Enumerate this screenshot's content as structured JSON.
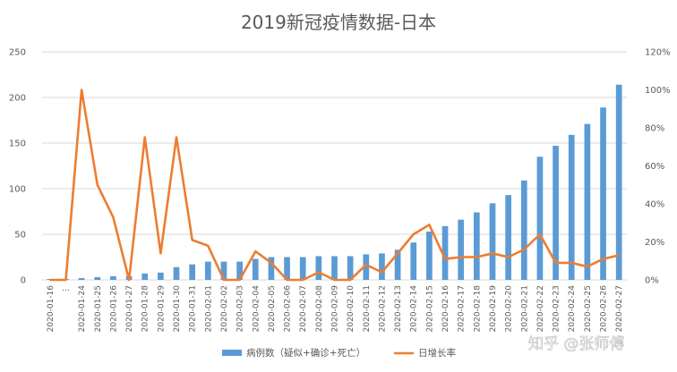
{
  "chart_data": {
    "type": "bar",
    "title": "2019新冠疫情数据-日本",
    "categories": [
      "2020-01-16",
      "…",
      "2020-01-24",
      "2020-01-25",
      "2020-01-26",
      "2020-01-27",
      "2020-01-28",
      "2020-01-29",
      "2020-01-30",
      "2020-01-31",
      "2020-02-01",
      "2020-02-02",
      "2020-02-03",
      "2020-02-04",
      "2020-02-05",
      "2020-02-06",
      "2020-02-07",
      "2020-02-08",
      "2020-02-09",
      "2020-02-10",
      "2020-02-11",
      "2020-02-12",
      "2020-02-13",
      "2020-02-14",
      "2020-02-15",
      "2020-02-16",
      "2020-02-17",
      "2020-02-18",
      "2020-02-19",
      "2020-02-20",
      "2020-02-21",
      "2020-02-22",
      "2020-02-23",
      "2020-02-24",
      "2020-02-25",
      "2020-02-26",
      "2020-02-27"
    ],
    "series": [
      {
        "name": "病例数（疑似+确诊+死亡）",
        "type": "bar",
        "axis": "left",
        "color": "#5B9BD5",
        "values": [
          1,
          1,
          2,
          3,
          4,
          4,
          7,
          8,
          14,
          17,
          20,
          20,
          20,
          23,
          25,
          25,
          25,
          26,
          26,
          26,
          28,
          29,
          33,
          41,
          53,
          59,
          66,
          74,
          84,
          93,
          109,
          135,
          147,
          159,
          171,
          189,
          214
        ]
      },
      {
        "name": "日增长率",
        "type": "line",
        "axis": "right",
        "color": "#ED7D31",
        "values": [
          0,
          0,
          1.0,
          0.5,
          0.33,
          0.0,
          0.75,
          0.14,
          0.75,
          0.21,
          0.18,
          0.0,
          0.0,
          0.15,
          0.09,
          0.0,
          0.0,
          0.04,
          0.0,
          0.0,
          0.08,
          0.04,
          0.14,
          0.24,
          0.29,
          0.11,
          0.12,
          0.12,
          0.14,
          0.12,
          0.16,
          0.24,
          0.09,
          0.09,
          0.07,
          0.11,
          0.13
        ]
      }
    ],
    "ylim": [
      0,
      250
    ],
    "yticks": [
      "0",
      "50",
      "100",
      "150",
      "200",
      "250"
    ],
    "y2lim": [
      0,
      1.2
    ],
    "y2ticks": [
      "0%",
      "20%",
      "40%",
      "60%",
      "80%",
      "100%",
      "120%"
    ],
    "grid": true,
    "legend_position": "bottom"
  },
  "watermark": "知乎 @张师傅"
}
